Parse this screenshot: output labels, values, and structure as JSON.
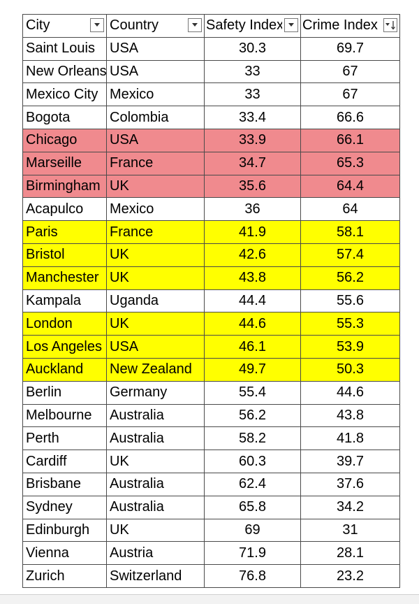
{
  "columns": [
    {
      "label": "City",
      "filter_icon": "dropdown-arrow",
      "sorted": false
    },
    {
      "label": "Country",
      "filter_icon": "dropdown-arrow",
      "sorted": false
    },
    {
      "label": "Safety Index",
      "filter_icon": "dropdown-arrow",
      "sorted": false
    },
    {
      "label": "Crime Index",
      "filter_icon": "sort-descending-arrow",
      "sorted": true
    }
  ],
  "highlight_colors": {
    "red": "#f08a8e",
    "yellow": "#ffff00"
  },
  "rows": [
    {
      "city": "Saint Louis",
      "country": "USA",
      "safety": "30.3",
      "crime": "69.7",
      "style": "none"
    },
    {
      "city": "New Orleans",
      "country": "USA",
      "safety": "33",
      "crime": "67",
      "style": "none"
    },
    {
      "city": "Mexico City",
      "country": "Mexico",
      "safety": "33",
      "crime": "67",
      "style": "none"
    },
    {
      "city": "Bogota",
      "country": "Colombia",
      "safety": "33.4",
      "crime": "66.6",
      "style": "none"
    },
    {
      "city": "Chicago",
      "country": "USA",
      "safety": "33.9",
      "crime": "66.1",
      "style": "red"
    },
    {
      "city": "Marseille",
      "country": "France",
      "safety": "34.7",
      "crime": "65.3",
      "style": "red"
    },
    {
      "city": "Birmingham",
      "country": "UK",
      "safety": "35.6",
      "crime": "64.4",
      "style": "red"
    },
    {
      "city": "Acapulco",
      "country": "Mexico",
      "safety": "36",
      "crime": "64",
      "style": "none"
    },
    {
      "city": "Paris",
      "country": "France",
      "safety": "41.9",
      "crime": "58.1",
      "style": "yellow"
    },
    {
      "city": "Bristol",
      "country": "UK",
      "safety": "42.6",
      "crime": "57.4",
      "style": "yellow"
    },
    {
      "city": "Manchester",
      "country": "UK",
      "safety": "43.8",
      "crime": "56.2",
      "style": "yellow"
    },
    {
      "city": "Kampala",
      "country": "Uganda",
      "safety": "44.4",
      "crime": "55.6",
      "style": "bold"
    },
    {
      "city": "London",
      "country": "UK",
      "safety": "44.6",
      "crime": "55.3",
      "style": "yellow"
    },
    {
      "city": "Los Angeles",
      "country": "USA",
      "safety": "46.1",
      "crime": "53.9",
      "style": "yellow"
    },
    {
      "city": "Auckland",
      "country": "New Zealand",
      "safety": "49.7",
      "crime": "50.3",
      "style": "yellow"
    },
    {
      "city": "Berlin",
      "country": "Germany",
      "safety": "55.4",
      "crime": "44.6",
      "style": "none"
    },
    {
      "city": "Melbourne",
      "country": "Australia",
      "safety": "56.2",
      "crime": "43.8",
      "style": "none"
    },
    {
      "city": "Perth",
      "country": "Australia",
      "safety": "58.2",
      "crime": "41.8",
      "style": "none"
    },
    {
      "city": "Cardiff",
      "country": "UK",
      "safety": "60.3",
      "crime": "39.7",
      "style": "none"
    },
    {
      "city": "Brisbane",
      "country": "Australia",
      "safety": "62.4",
      "crime": "37.6",
      "style": "none"
    },
    {
      "city": "Sydney",
      "country": "Australia",
      "safety": "65.8",
      "crime": "34.2",
      "style": "none"
    },
    {
      "city": "Edinburgh",
      "country": "UK",
      "safety": "69",
      "crime": "31",
      "style": "none"
    },
    {
      "city": "Vienna",
      "country": "Austria",
      "safety": "71.9",
      "crime": "28.1",
      "style": "none"
    },
    {
      "city": "Zurich",
      "country": "Switzerland",
      "safety": "76.8",
      "crime": "23.2",
      "style": "none"
    }
  ]
}
